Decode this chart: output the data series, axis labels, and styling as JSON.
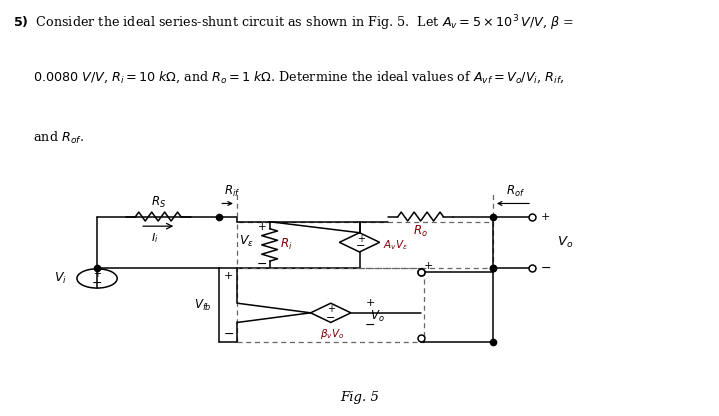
{
  "bg_color": "#ffffff",
  "cc": "#000000",
  "dc": "#666666",
  "lc": "#7B0000",
  "fig_label": "Fig. 5"
}
